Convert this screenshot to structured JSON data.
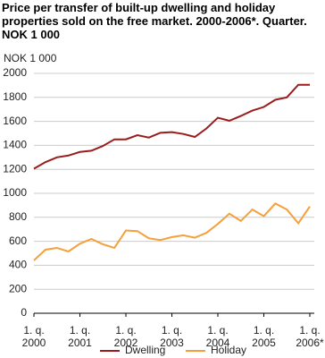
{
  "chart_data": {
    "type": "line",
    "title": "Price per transfer of built-up dwelling and holiday properties sold on the free market. 2000-2006*. Quarter. NOK 1 000",
    "y_axis_label": "NOK 1 000",
    "categories": [
      [
        "1. q.",
        "2000"
      ],
      null,
      null,
      null,
      [
        "1. q.",
        "2001"
      ],
      null,
      null,
      null,
      [
        "1. q.",
        "2002"
      ],
      null,
      null,
      null,
      [
        "1. q.",
        "2003"
      ],
      null,
      null,
      null,
      [
        "1. q.",
        "2004"
      ],
      null,
      null,
      null,
      [
        "1. q.",
        "2005"
      ],
      null,
      null,
      null,
      [
        "1. q.",
        "2006*"
      ]
    ],
    "series": [
      {
        "name": "Dwelling",
        "color": "#9b1c1c",
        "values": [
          1205,
          1260,
          1300,
          1315,
          1345,
          1355,
          1395,
          1450,
          1450,
          1485,
          1465,
          1505,
          1510,
          1495,
          1470,
          1540,
          1630,
          1605,
          1645,
          1690,
          1720,
          1780,
          1800,
          1905,
          1905
        ]
      },
      {
        "name": "Holiday",
        "color": "#f5a03c",
        "values": [
          440,
          530,
          545,
          515,
          580,
          620,
          575,
          545,
          690,
          685,
          625,
          610,
          635,
          650,
          630,
          670,
          745,
          830,
          770,
          865,
          810,
          915,
          865,
          750,
          890
        ]
      }
    ],
    "ylim": [
      0,
      2000
    ],
    "yticks": [
      0,
      200,
      400,
      600,
      800,
      1000,
      1200,
      1400,
      1600,
      1800,
      2000
    ],
    "grid": true
  }
}
